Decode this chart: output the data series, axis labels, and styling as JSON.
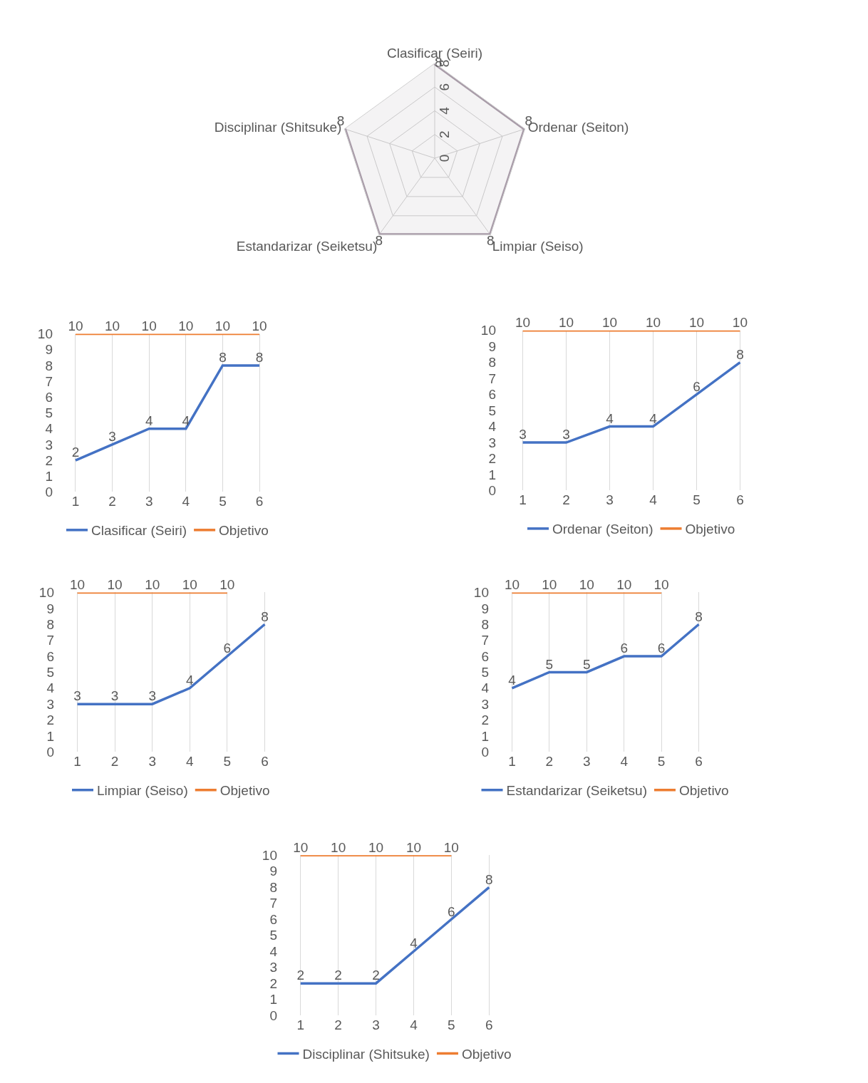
{
  "chart_data": [
    {
      "type": "radar",
      "categories": [
        "Clasificar (Seiri)",
        "Ordenar (Seiton)",
        "Limpiar (Seiso)",
        "Estandarizar (Seiketsu)",
        "Disciplinar (Shitsuke)"
      ],
      "series": [
        {
          "color": "#a89ba8",
          "values": [
            8,
            8,
            8,
            8,
            8
          ]
        }
      ],
      "ylim": [
        0,
        8
      ],
      "yticks": [
        0,
        2,
        4,
        6,
        8
      ],
      "grid": true,
      "data_labels": true
    },
    {
      "type": "line",
      "categories": [
        "1",
        "2",
        "3",
        "4",
        "5",
        "6"
      ],
      "series": [
        {
          "name": "Clasificar (Seiri)",
          "color": "#4472c4",
          "values": [
            2,
            3,
            4,
            4,
            8,
            8
          ]
        },
        {
          "name": "Objetivo",
          "color": "#ed7d31",
          "values": [
            10,
            10,
            10,
            10,
            10,
            10
          ]
        }
      ],
      "ylim": [
        0,
        10
      ],
      "yticks": [
        0,
        1,
        2,
        3,
        4,
        5,
        6,
        7,
        8,
        9,
        10
      ],
      "grid": "x",
      "legend": "bottom",
      "marker": "none",
      "data_labels": true
    },
    {
      "type": "line",
      "categories": [
        "1",
        "2",
        "3",
        "4",
        "5",
        "6"
      ],
      "series": [
        {
          "name": "Ordenar (Seiton)",
          "color": "#4472c4",
          "values": [
            3,
            3,
            4,
            4,
            6,
            8
          ]
        },
        {
          "name": "Objetivo",
          "color": "#ed7d31",
          "values": [
            10,
            10,
            10,
            10,
            10,
            10
          ]
        }
      ],
      "ylim": [
        0,
        10
      ],
      "yticks": [
        0,
        1,
        2,
        3,
        4,
        5,
        6,
        7,
        8,
        9,
        10
      ],
      "grid": "x",
      "legend": "bottom",
      "marker": "none",
      "data_labels": true
    },
    {
      "type": "line",
      "categories": [
        "1",
        "2",
        "3",
        "4",
        "5",
        "6"
      ],
      "series": [
        {
          "name": "Limpiar (Seiso)",
          "color": "#4472c4",
          "values": [
            3,
            3,
            3,
            4,
            6,
            8
          ]
        },
        {
          "name": "Objetivo",
          "color": "#ed7d31",
          "values": [
            10,
            10,
            10,
            10,
            10,
            null
          ]
        }
      ],
      "ylim": [
        0,
        10
      ],
      "yticks": [
        0,
        1,
        2,
        3,
        4,
        5,
        6,
        7,
        8,
        9,
        10
      ],
      "grid": "x",
      "legend": "bottom",
      "marker": "none",
      "data_labels": true
    },
    {
      "type": "line",
      "categories": [
        "1",
        "2",
        "3",
        "4",
        "5",
        "6"
      ],
      "series": [
        {
          "name": "Estandarizar (Seiketsu)",
          "color": "#4472c4",
          "values": [
            4,
            5,
            5,
            6,
            6,
            8
          ]
        },
        {
          "name": "Objetivo",
          "color": "#ed7d31",
          "values": [
            10,
            10,
            10,
            10,
            10,
            null
          ]
        }
      ],
      "ylim": [
        0,
        10
      ],
      "yticks": [
        0,
        1,
        2,
        3,
        4,
        5,
        6,
        7,
        8,
        9,
        10
      ],
      "grid": "x",
      "legend": "bottom",
      "marker": "none",
      "data_labels": true
    },
    {
      "type": "line",
      "categories": [
        "1",
        "2",
        "3",
        "4",
        "5",
        "6"
      ],
      "series": [
        {
          "name": "Disciplinar (Shitsuke)",
          "color": "#4472c4",
          "values": [
            2,
            2,
            2,
            4,
            6,
            8
          ]
        },
        {
          "name": "Objetivo",
          "color": "#ed7d31",
          "values": [
            10,
            10,
            10,
            10,
            10,
            null
          ]
        }
      ],
      "ylim": [
        0,
        10
      ],
      "yticks": [
        0,
        1,
        2,
        3,
        4,
        5,
        6,
        7,
        8,
        9,
        10
      ],
      "grid": "x",
      "legend": "bottom",
      "marker": "none",
      "data_labels": true
    }
  ]
}
